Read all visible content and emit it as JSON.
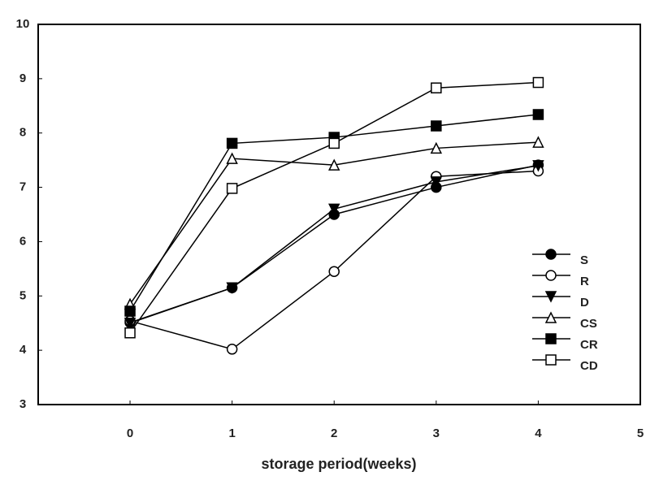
{
  "chart_data": {
    "type": "line",
    "x_label": "storage period(weeks)",
    "x": [
      0,
      1,
      2,
      3,
      4
    ],
    "series": [
      {
        "name": "S",
        "color": "#000000",
        "marker": "circle-filled",
        "values": [
          4.51,
          5.15,
          6.5,
          7.0,
          7.41
        ]
      },
      {
        "name": "R",
        "color": "#000000",
        "marker": "circle-open",
        "values": [
          4.54,
          4.02,
          5.45,
          7.2,
          7.3
        ]
      },
      {
        "name": "D",
        "color": "#000000",
        "marker": "triangle-down-filled",
        "values": [
          4.5,
          5.15,
          6.6,
          7.1,
          7.4
        ]
      },
      {
        "name": "CS",
        "color": "#000000",
        "marker": "triangle-open",
        "values": [
          4.85,
          7.53,
          7.41,
          7.72,
          7.83
        ]
      },
      {
        "name": "CR",
        "color": "#000000",
        "marker": "square-filled",
        "values": [
          4.72,
          7.81,
          7.92,
          8.13,
          8.34
        ]
      },
      {
        "name": "CD",
        "color": "#000000",
        "marker": "square-open",
        "values": [
          4.32,
          6.98,
          7.81,
          8.83,
          8.93
        ]
      }
    ],
    "xlim": [
      -0.9,
      5
    ],
    "xticks": [
      0,
      1,
      2,
      3,
      4,
      5
    ],
    "ylim": [
      3,
      10
    ],
    "yticks": [
      3,
      4,
      5,
      6,
      7,
      8,
      9,
      10
    ],
    "legend": "lower-right"
  }
}
